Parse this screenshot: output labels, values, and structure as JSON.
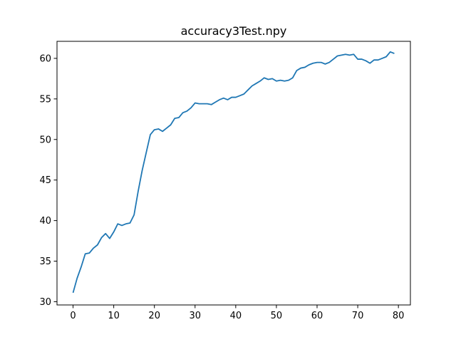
{
  "chart_data": {
    "type": "line",
    "title": "accuracy3Test.npy",
    "xlabel": "",
    "ylabel": "",
    "xlim": [
      -3.95,
      82.95
    ],
    "ylim": [
      29.6,
      62.1
    ],
    "xticks": [
      0,
      10,
      20,
      30,
      40,
      50,
      60,
      70,
      80
    ],
    "yticks": [
      30,
      35,
      40,
      45,
      50,
      55,
      60
    ],
    "grid": false,
    "series": [
      {
        "color": "#1f77b4",
        "x": [
          0,
          1,
          2,
          3,
          4,
          5,
          6,
          7,
          8,
          9,
          10,
          11,
          12,
          13,
          14,
          15,
          16,
          17,
          18,
          19,
          20,
          21,
          22,
          23,
          24,
          25,
          26,
          27,
          28,
          29,
          30,
          31,
          32,
          33,
          34,
          35,
          36,
          37,
          38,
          39,
          40,
          41,
          42,
          43,
          44,
          45,
          46,
          47,
          48,
          49,
          50,
          51,
          52,
          53,
          54,
          55,
          56,
          57,
          58,
          59,
          60,
          61,
          62,
          63,
          64,
          65,
          66,
          67,
          68,
          69,
          70,
          71,
          72,
          73,
          74,
          75,
          76,
          77,
          78,
          79
        ],
        "values": [
          31.1,
          32.9,
          34.3,
          35.9,
          36.0,
          36.6,
          37.0,
          37.9,
          38.4,
          37.8,
          38.6,
          39.6,
          39.4,
          39.6,
          39.7,
          40.7,
          43.6,
          46.2,
          48.4,
          50.6,
          51.2,
          51.3,
          51.0,
          51.4,
          51.8,
          52.6,
          52.7,
          53.3,
          53.5,
          53.9,
          54.5,
          54.4,
          54.4,
          54.4,
          54.3,
          54.6,
          54.9,
          55.1,
          54.9,
          55.2,
          55.2,
          55.4,
          55.6,
          56.1,
          56.6,
          56.9,
          57.2,
          57.6,
          57.4,
          57.5,
          57.2,
          57.3,
          57.2,
          57.3,
          57.6,
          58.5,
          58.8,
          58.9,
          59.2,
          59.4,
          59.5,
          59.5,
          59.3,
          59.5,
          59.9,
          60.3,
          60.4,
          60.5,
          60.4,
          60.5,
          59.9,
          59.9,
          59.7,
          59.4,
          59.8,
          59.8,
          60.0,
          60.2,
          60.8,
          60.6
        ]
      }
    ]
  }
}
